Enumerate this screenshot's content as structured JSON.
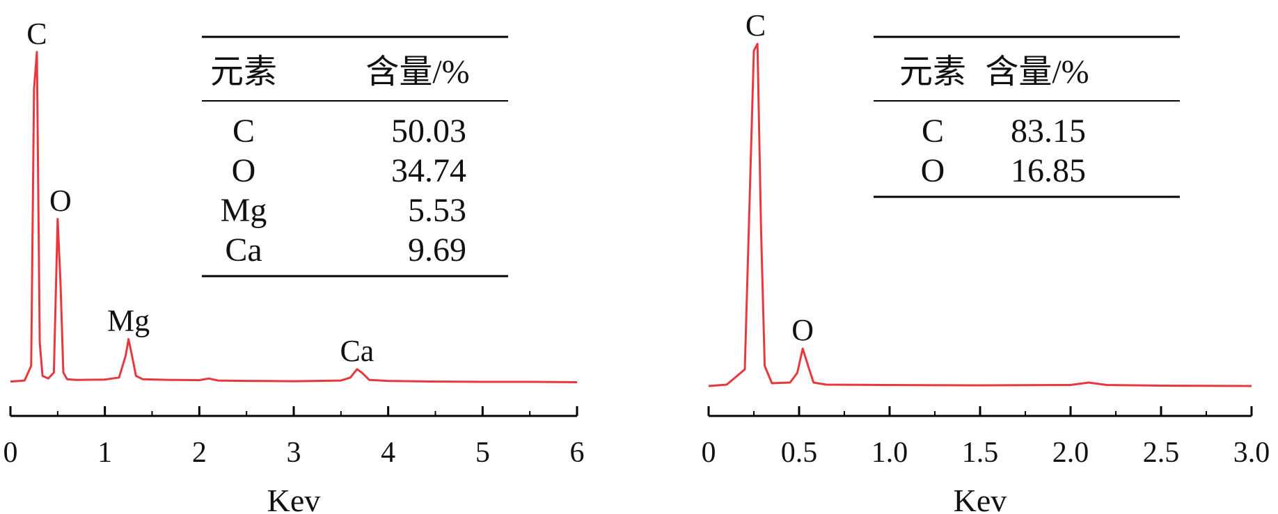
{
  "chart_data": [
    {
      "type": "line",
      "title": "",
      "xlabel": "Kev",
      "ylabel": "",
      "xlim": [
        0,
        6
      ],
      "x_ticks": [
        "0",
        "1",
        "2",
        "3",
        "4",
        "5",
        "6"
      ],
      "grid": false,
      "line_color": "#e8383d",
      "series": [
        {
          "x": [
            0,
            0.15,
            0.22,
            0.25,
            0.28,
            0.31,
            0.34,
            0.4,
            0.46,
            0.5,
            0.53,
            0.56,
            0.6,
            0.7,
            1.0,
            1.15,
            1.22,
            1.25,
            1.28,
            1.33,
            1.4,
            1.7,
            2.0,
            2.1,
            2.2,
            2.5,
            3.0,
            3.5,
            3.6,
            3.67,
            3.72,
            3.8,
            4.0,
            4.5,
            5.0,
            5.5,
            6.0
          ],
          "y": [
            0.003,
            0.006,
            0.05,
            0.88,
            0.99,
            0.12,
            0.02,
            0.012,
            0.03,
            0.49,
            0.3,
            0.03,
            0.01,
            0.008,
            0.009,
            0.015,
            0.08,
            0.13,
            0.09,
            0.02,
            0.01,
            0.008,
            0.007,
            0.012,
            0.006,
            0.005,
            0.004,
            0.006,
            0.015,
            0.04,
            0.03,
            0.008,
            0.005,
            0.003,
            0.002,
            0.002,
            0.001
          ]
        }
      ],
      "peak_labels": [
        {
          "text": "C",
          "x": 0.28,
          "y": 0.99
        },
        {
          "text": "O",
          "x": 0.53,
          "y": 0.49
        },
        {
          "text": "Mg",
          "x": 1.25,
          "y": 0.13
        },
        {
          "text": "Ca",
          "x": 3.67,
          "y": 0.04
        }
      ],
      "table": {
        "headers": [
          "元素",
          "含量/%"
        ],
        "rows": [
          [
            "C",
            "50.03"
          ],
          [
            "O",
            "34.74"
          ],
          [
            "Mg",
            "5.53"
          ],
          [
            "Ca",
            "9.69"
          ]
        ]
      }
    },
    {
      "type": "line",
      "title": "",
      "xlabel": "Kev",
      "ylabel": "",
      "xlim": [
        0,
        3.0
      ],
      "x_ticks": [
        "0",
        "0.5",
        "1.0",
        "1.5",
        "2.0",
        "2.5",
        "3.0"
      ],
      "grid": false,
      "line_color": "#e8383d",
      "series": [
        {
          "x": [
            0,
            0.1,
            0.2,
            0.23,
            0.25,
            0.27,
            0.29,
            0.31,
            0.35,
            0.45,
            0.49,
            0.52,
            0.55,
            0.58,
            0.65,
            1.0,
            1.5,
            2.0,
            2.1,
            2.2,
            2.5,
            3.0
          ],
          "y": [
            0.002,
            0.006,
            0.05,
            0.6,
            0.97,
            0.99,
            0.45,
            0.06,
            0.01,
            0.012,
            0.04,
            0.11,
            0.06,
            0.012,
            0.006,
            0.005,
            0.004,
            0.005,
            0.012,
            0.005,
            0.003,
            0.002
          ]
        }
      ],
      "peak_labels": [
        {
          "text": "C",
          "x": 0.26,
          "y": 0.99
        },
        {
          "text": "O",
          "x": 0.52,
          "y": 0.11
        }
      ],
      "table": {
        "headers": [
          "元素",
          "含量/%"
        ],
        "rows": [
          [
            "C",
            "83.15"
          ],
          [
            "O",
            "16.85"
          ]
        ]
      }
    }
  ]
}
